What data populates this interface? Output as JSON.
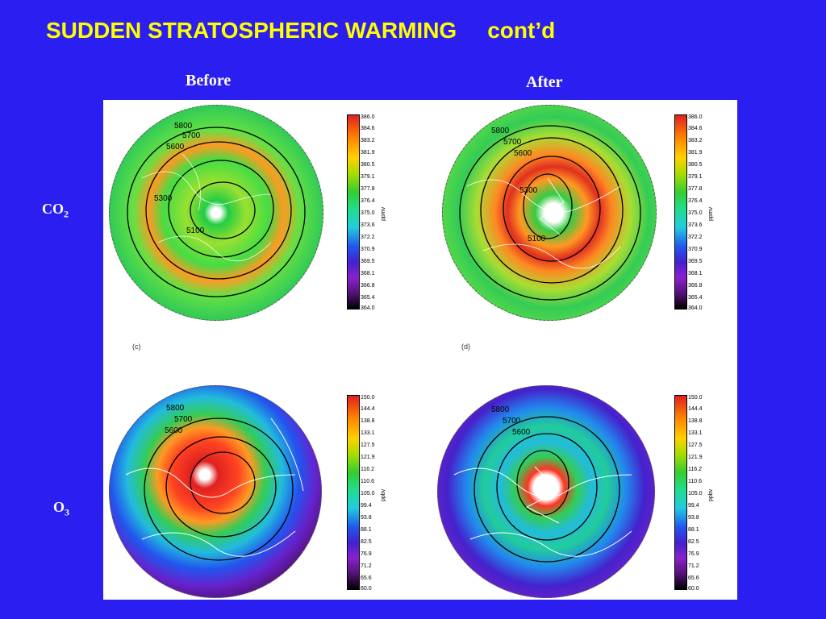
{
  "title": "SUDDEN STRATOSPHERIC WARMING",
  "title_suffix": "cont’d",
  "columns": {
    "before": "Before",
    "after": "After"
  },
  "rows": {
    "co2": {
      "base": "CO",
      "sub": "2"
    },
    "o3": {
      "base": "O",
      "sub": "3"
    }
  },
  "panel_tags": {
    "c": "(c)",
    "d": "(d)"
  },
  "co2_scale": {
    "unit": "ppmv",
    "ticks": [
      "386.0",
      "384.6",
      "383.2",
      "381.9",
      "380.5",
      "379.1",
      "377.8",
      "376.4",
      "375.0",
      "373.6",
      "372.2",
      "370.9",
      "369.5",
      "368.1",
      "366.8",
      "365.4",
      "364.0"
    ]
  },
  "o3_scale": {
    "unit": "ppbv",
    "ticks": [
      "150.0",
      "144.4",
      "138.8",
      "133.1",
      "127.5",
      "121.9",
      "116.2",
      "110.6",
      "105.0",
      "99.4",
      "93.8",
      "88.1",
      "82.5",
      "76.9",
      "71.2",
      "65.6",
      "60.0"
    ]
  },
  "contour_labels": {
    "co2_before": [
      "5800",
      "5700",
      "5600",
      "5300",
      "5100"
    ],
    "co2_after": [
      "5800",
      "5700",
      "5600",
      "5300",
      "5100"
    ],
    "o3_before": [
      "5800",
      "5700",
      "5600"
    ],
    "o3_after": [
      "5800",
      "5700",
      "5600"
    ]
  },
  "colors": {
    "background": "#2B1EF0",
    "title": "#FFFF00",
    "labels": "#FFFFFF"
  }
}
